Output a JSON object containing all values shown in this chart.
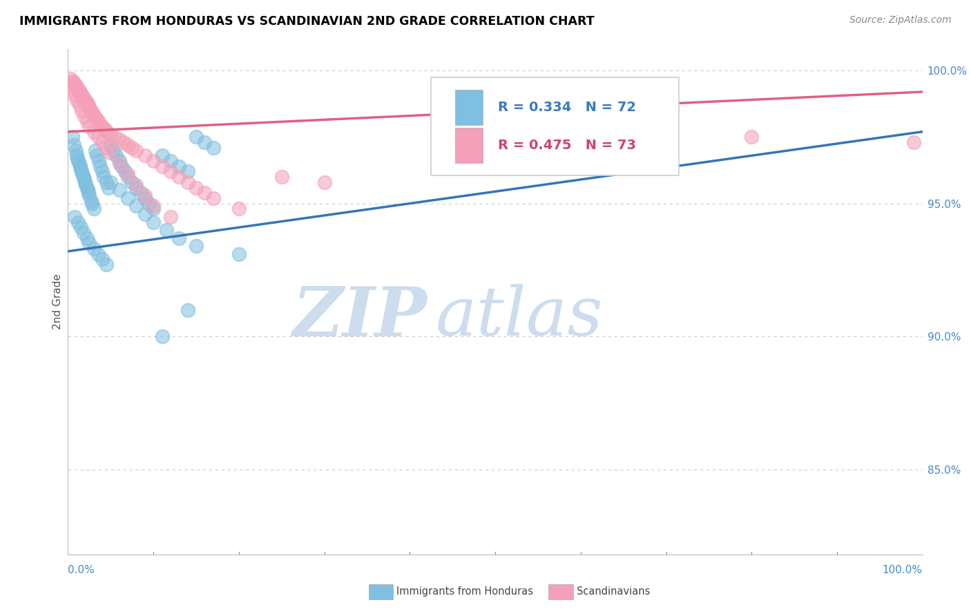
{
  "title": "IMMIGRANTS FROM HONDURAS VS SCANDINAVIAN 2ND GRADE CORRELATION CHART",
  "source": "Source: ZipAtlas.com",
  "ylabel": "2nd Grade",
  "ylabel_right_ticks": [
    "85.0%",
    "90.0%",
    "95.0%",
    "100.0%"
  ],
  "ylabel_right_vals": [
    0.85,
    0.9,
    0.95,
    1.0
  ],
  "r_blue": 0.334,
  "n_blue": 72,
  "r_pink": 0.475,
  "n_pink": 73,
  "legend_labels": [
    "Immigrants from Honduras",
    "Scandinavians"
  ],
  "blue_color": "#7fbfdf",
  "pink_color": "#f4a0b8",
  "blue_line_color": "#3575b8",
  "pink_line_color": "#e06080",
  "watermark_zip": "ZIP",
  "watermark_atlas": "atlas",
  "watermark_color": "#cddded",
  "xmin": 0.0,
  "xmax": 1.0,
  "ymin": 0.818,
  "ymax": 1.008,
  "blue_scatter_x": [
    0.005,
    0.007,
    0.009,
    0.01,
    0.011,
    0.012,
    0.013,
    0.014,
    0.015,
    0.016,
    0.017,
    0.018,
    0.019,
    0.02,
    0.021,
    0.022,
    0.023,
    0.024,
    0.025,
    0.027,
    0.028,
    0.03,
    0.032,
    0.034,
    0.036,
    0.038,
    0.04,
    0.042,
    0.045,
    0.047,
    0.05,
    0.053,
    0.056,
    0.06,
    0.063,
    0.067,
    0.07,
    0.075,
    0.08,
    0.085,
    0.09,
    0.095,
    0.1,
    0.11,
    0.12,
    0.13,
    0.14,
    0.15,
    0.16,
    0.17,
    0.008,
    0.012,
    0.015,
    0.018,
    0.022,
    0.025,
    0.03,
    0.035,
    0.04,
    0.045,
    0.05,
    0.06,
    0.07,
    0.08,
    0.09,
    0.1,
    0.115,
    0.13,
    0.15,
    0.2,
    0.11,
    0.14
  ],
  "blue_scatter_y": [
    0.975,
    0.972,
    0.97,
    0.968,
    0.967,
    0.966,
    0.965,
    0.964,
    0.963,
    0.962,
    0.961,
    0.96,
    0.959,
    0.958,
    0.957,
    0.956,
    0.955,
    0.954,
    0.953,
    0.951,
    0.95,
    0.948,
    0.97,
    0.968,
    0.966,
    0.964,
    0.962,
    0.96,
    0.958,
    0.956,
    0.972,
    0.97,
    0.968,
    0.966,
    0.964,
    0.962,
    0.96,
    0.958,
    0.956,
    0.954,
    0.952,
    0.95,
    0.948,
    0.968,
    0.966,
    0.964,
    0.962,
    0.975,
    0.973,
    0.971,
    0.945,
    0.943,
    0.941,
    0.939,
    0.937,
    0.935,
    0.933,
    0.931,
    0.929,
    0.927,
    0.958,
    0.955,
    0.952,
    0.949,
    0.946,
    0.943,
    0.94,
    0.937,
    0.934,
    0.931,
    0.9,
    0.91
  ],
  "pink_scatter_x": [
    0.003,
    0.005,
    0.006,
    0.007,
    0.008,
    0.009,
    0.01,
    0.011,
    0.012,
    0.013,
    0.014,
    0.015,
    0.016,
    0.017,
    0.018,
    0.019,
    0.02,
    0.021,
    0.022,
    0.023,
    0.024,
    0.025,
    0.027,
    0.029,
    0.031,
    0.033,
    0.035,
    0.037,
    0.04,
    0.043,
    0.046,
    0.05,
    0.055,
    0.06,
    0.065,
    0.07,
    0.075,
    0.08,
    0.09,
    0.1,
    0.11,
    0.12,
    0.13,
    0.14,
    0.15,
    0.16,
    0.17,
    0.2,
    0.25,
    0.3,
    0.004,
    0.007,
    0.01,
    0.013,
    0.016,
    0.019,
    0.022,
    0.025,
    0.03,
    0.035,
    0.04,
    0.045,
    0.05,
    0.06,
    0.07,
    0.08,
    0.09,
    0.1,
    0.12,
    0.5,
    0.7,
    0.8,
    0.99
  ],
  "pink_scatter_y": [
    0.997,
    0.996,
    0.996,
    0.995,
    0.995,
    0.994,
    0.994,
    0.993,
    0.993,
    0.992,
    0.992,
    0.991,
    0.991,
    0.99,
    0.99,
    0.989,
    0.989,
    0.988,
    0.988,
    0.987,
    0.987,
    0.986,
    0.985,
    0.984,
    0.983,
    0.982,
    0.981,
    0.98,
    0.979,
    0.978,
    0.977,
    0.976,
    0.975,
    0.974,
    0.973,
    0.972,
    0.971,
    0.97,
    0.968,
    0.966,
    0.964,
    0.962,
    0.96,
    0.958,
    0.956,
    0.954,
    0.952,
    0.948,
    0.96,
    0.958,
    0.993,
    0.991,
    0.989,
    0.987,
    0.985,
    0.983,
    0.981,
    0.979,
    0.977,
    0.975,
    0.973,
    0.971,
    0.969,
    0.965,
    0.961,
    0.957,
    0.953,
    0.949,
    0.945,
    0.978,
    0.976,
    0.975,
    0.973
  ]
}
